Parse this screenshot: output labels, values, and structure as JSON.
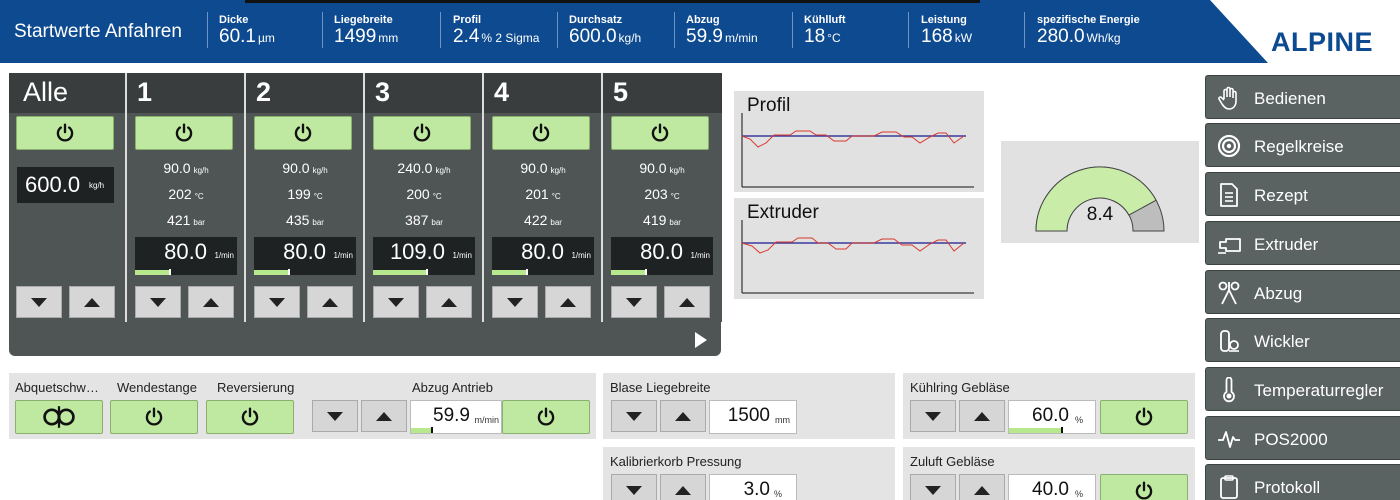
{
  "header": {
    "title": "Startwerte Anfahren",
    "logo": "ALPINE",
    "metrics": [
      {
        "label": "Dicke",
        "value": "60.1",
        "unit": "µm"
      },
      {
        "label": "Liegebreite",
        "value": "1499",
        "unit": "mm"
      },
      {
        "label": "Profil",
        "value": "2.4",
        "unit": "% 2 Sigma"
      },
      {
        "label": "Durchsatz",
        "value": "600.0",
        "unit": "kg/h"
      },
      {
        "label": "Abzug",
        "value": "59.9",
        "unit": "m/min"
      },
      {
        "label": "Kühlluft",
        "value": "18",
        "unit": "°C"
      },
      {
        "label": "Leistung",
        "value": "168",
        "unit": "kW"
      },
      {
        "label": "spezifische Energie",
        "value": "280.0",
        "unit": "Wh/kg"
      }
    ]
  },
  "extruders": {
    "all": {
      "label": "Alle",
      "total": "600.0",
      "total_unit": "kg/h"
    },
    "units": {
      "throughput": "kg/h",
      "temp": "°C",
      "pressure": "bar",
      "speed": "1/min"
    },
    "columns": [
      {
        "label": "1",
        "throughput": "90.0",
        "temp": "202",
        "pressure": "421",
        "speed": "80.0",
        "level": 0.33
      },
      {
        "label": "2",
        "throughput": "90.0",
        "temp": "199",
        "pressure": "435",
        "speed": "80.0",
        "level": 0.33
      },
      {
        "label": "3",
        "throughput": "240.0",
        "temp": "200",
        "pressure": "387",
        "speed": "109.0",
        "level": 0.52
      },
      {
        "label": "4",
        "throughput": "90.0",
        "temp": "201",
        "pressure": "422",
        "speed": "80.0",
        "level": 0.33
      },
      {
        "label": "5",
        "throughput": "90.0",
        "temp": "203",
        "pressure": "419",
        "speed": "80.0",
        "level": 0.33
      }
    ]
  },
  "charts": {
    "profil": {
      "title": "Profil"
    },
    "extruder": {
      "title": "Extruder"
    },
    "gauge": {
      "value": "8.4",
      "fraction": 0.84
    }
  },
  "bottom": {
    "abquetsch": {
      "label": "Abquetschw…"
    },
    "wendestange": {
      "label": "Wendestange"
    },
    "reversierung": {
      "label": "Reversierung"
    },
    "abzug": {
      "label": "Abzug Antrieb",
      "value": "59.9",
      "unit": "m/min",
      "level": 0.22
    },
    "blase": {
      "label": "Blase Liegebreite",
      "value": "1500",
      "unit": "mm"
    },
    "kuehlring": {
      "label": "Kühlring Gebläse",
      "value": "60.0",
      "unit": "%",
      "level": 0.6
    },
    "kalibrier": {
      "label": "Kalibrierkorb Pressung",
      "value": "3.0",
      "unit": "%"
    },
    "zuluft": {
      "label": "Zuluft Gebläse",
      "value": "40.0",
      "unit": "%"
    }
  },
  "sidebar": {
    "items": [
      {
        "label": "Bedienen",
        "icon": "hand-icon"
      },
      {
        "label": "Regelkreise",
        "icon": "target-icon"
      },
      {
        "label": "Rezept",
        "icon": "document-icon"
      },
      {
        "label": "Extruder",
        "icon": "extruder-icon"
      },
      {
        "label": "Abzug",
        "icon": "haul-off-icon"
      },
      {
        "label": "Wickler",
        "icon": "winder-icon"
      },
      {
        "label": "Temperaturregler",
        "icon": "thermometer-icon"
      },
      {
        "label": "POS2000",
        "icon": "pulse-icon"
      },
      {
        "label": "Protokoll",
        "icon": "clipboard-icon"
      }
    ]
  }
}
